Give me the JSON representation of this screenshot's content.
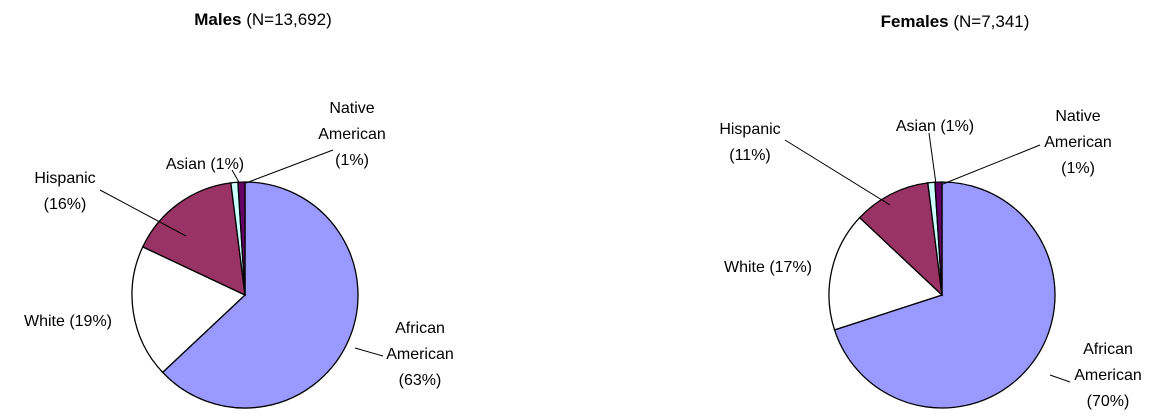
{
  "chart_data": [
    {
      "type": "pie",
      "title": "Males",
      "subtitle": "(N=13,692)",
      "categories": [
        "African American",
        "White",
        "Hispanic",
        "Asian",
        "Native American"
      ],
      "values": [
        63,
        19,
        16,
        1,
        1
      ],
      "value_labels": [
        "(63%)",
        "(19%)",
        "(16%)",
        "(1%)",
        "(1%)"
      ],
      "colors": [
        "#9999ff",
        "#ffffff",
        "#993366",
        "#ccffff",
        "#660066"
      ]
    },
    {
      "type": "pie",
      "title": "Females",
      "subtitle": "(N=7,341)",
      "categories": [
        "African American",
        "White",
        "Hispanic",
        "Asian",
        "Native American"
      ],
      "values": [
        70,
        17,
        11,
        1,
        1
      ],
      "value_labels": [
        "(70%)",
        "(17%)",
        "(11%)",
        "(1%)",
        "(1%)"
      ],
      "colors": [
        "#9999ff",
        "#ffffff",
        "#993366",
        "#ccffff",
        "#660066"
      ]
    }
  ]
}
